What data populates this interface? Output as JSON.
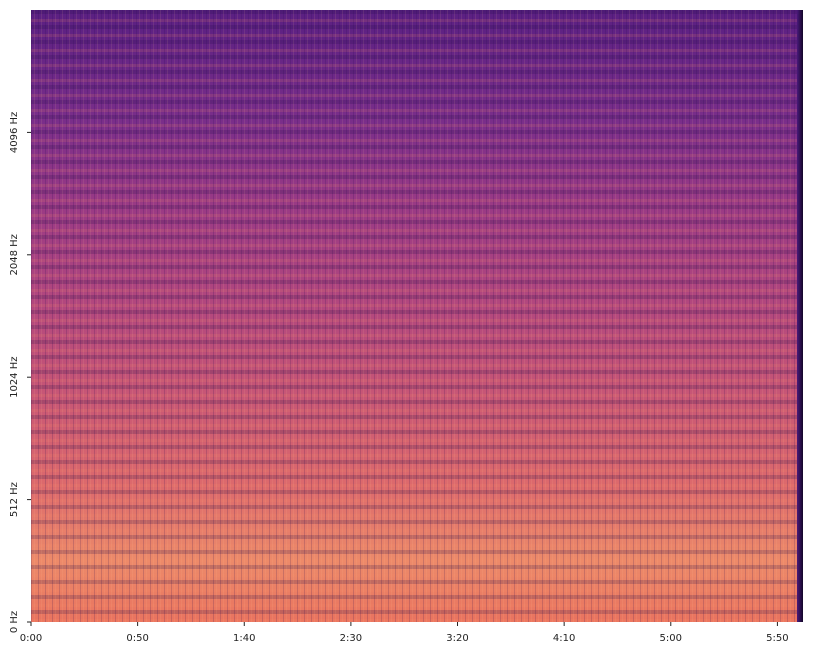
{
  "chart_data": {
    "type": "spectrogram",
    "xlim": [
      0,
      362
    ],
    "xticks": [
      {
        "value": 0,
        "label": "0:00"
      },
      {
        "value": 50,
        "label": "0:50"
      },
      {
        "value": 100,
        "label": "1:40"
      },
      {
        "value": 150,
        "label": "2:30"
      },
      {
        "value": 200,
        "label": "3:20"
      },
      {
        "value": 250,
        "label": "4:10"
      },
      {
        "value": 300,
        "label": "5:00"
      },
      {
        "value": 350,
        "label": "5:50"
      }
    ],
    "ylim": [
      0,
      8192
    ],
    "yscale": "symlog",
    "ylinthresh": 512,
    "ylogbase": 2,
    "yticks": [
      {
        "value": 0,
        "label": "0 Hz"
      },
      {
        "value": 512,
        "label": "512 Hz"
      },
      {
        "value": 1024,
        "label": "1024 Hz"
      },
      {
        "value": 2048,
        "label": "2048 Hz"
      },
      {
        "value": 4096,
        "label": "4096 Hz"
      }
    ]
  }
}
